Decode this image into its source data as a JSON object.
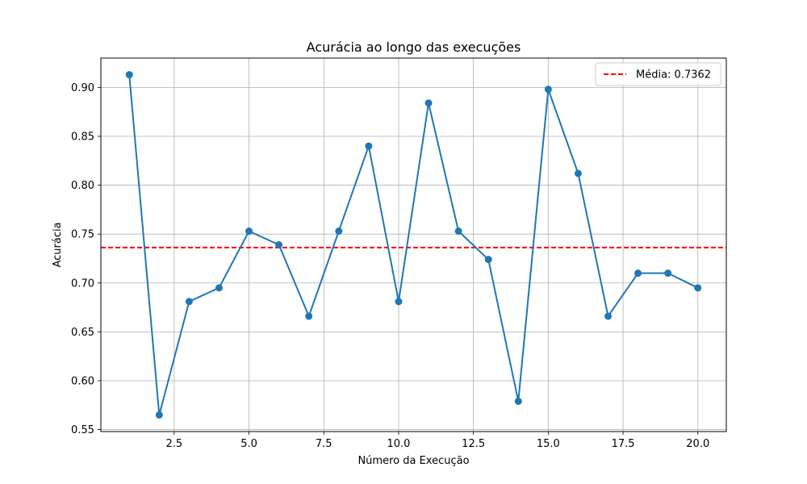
{
  "chart_data": {
    "type": "line",
    "title": "Acurácia ao longo das execuções",
    "xlabel": "Número da Execução",
    "ylabel": "Acurácia",
    "xlim": [
      0.05,
      20.95
    ],
    "ylim": [
      0.548,
      0.93
    ],
    "xticks": [
      2.5,
      5.0,
      7.5,
      10.0,
      12.5,
      15.0,
      17.5,
      20.0
    ],
    "xtick_labels": [
      "2.5",
      "5.0",
      "7.5",
      "10.0",
      "12.5",
      "15.0",
      "17.5",
      "20.0"
    ],
    "yticks": [
      0.55,
      0.6,
      0.65,
      0.7,
      0.75,
      0.8,
      0.85,
      0.9
    ],
    "ytick_labels": [
      "0.55",
      "0.60",
      "0.65",
      "0.70",
      "0.75",
      "0.80",
      "0.85",
      "0.90"
    ],
    "grid": true,
    "legend_position": "top-right",
    "series": [
      {
        "type": "line",
        "color": "#1f77b4",
        "marker": "circle",
        "x": [
          1,
          2,
          3,
          4,
          5,
          6,
          7,
          8,
          9,
          10,
          11,
          12,
          13,
          14,
          15,
          16,
          17,
          18,
          19,
          20
        ],
        "y": [
          0.913,
          0.565,
          0.681,
          0.695,
          0.753,
          0.739,
          0.666,
          0.753,
          0.84,
          0.681,
          0.884,
          0.753,
          0.724,
          0.579,
          0.898,
          0.812,
          0.666,
          0.71,
          0.71,
          0.695
        ]
      }
    ],
    "reference_lines": [
      {
        "type": "horizontal",
        "y": 0.7362,
        "label": "Média: 0.7362",
        "color": "#ff0000",
        "style": "dashed"
      }
    ]
  }
}
